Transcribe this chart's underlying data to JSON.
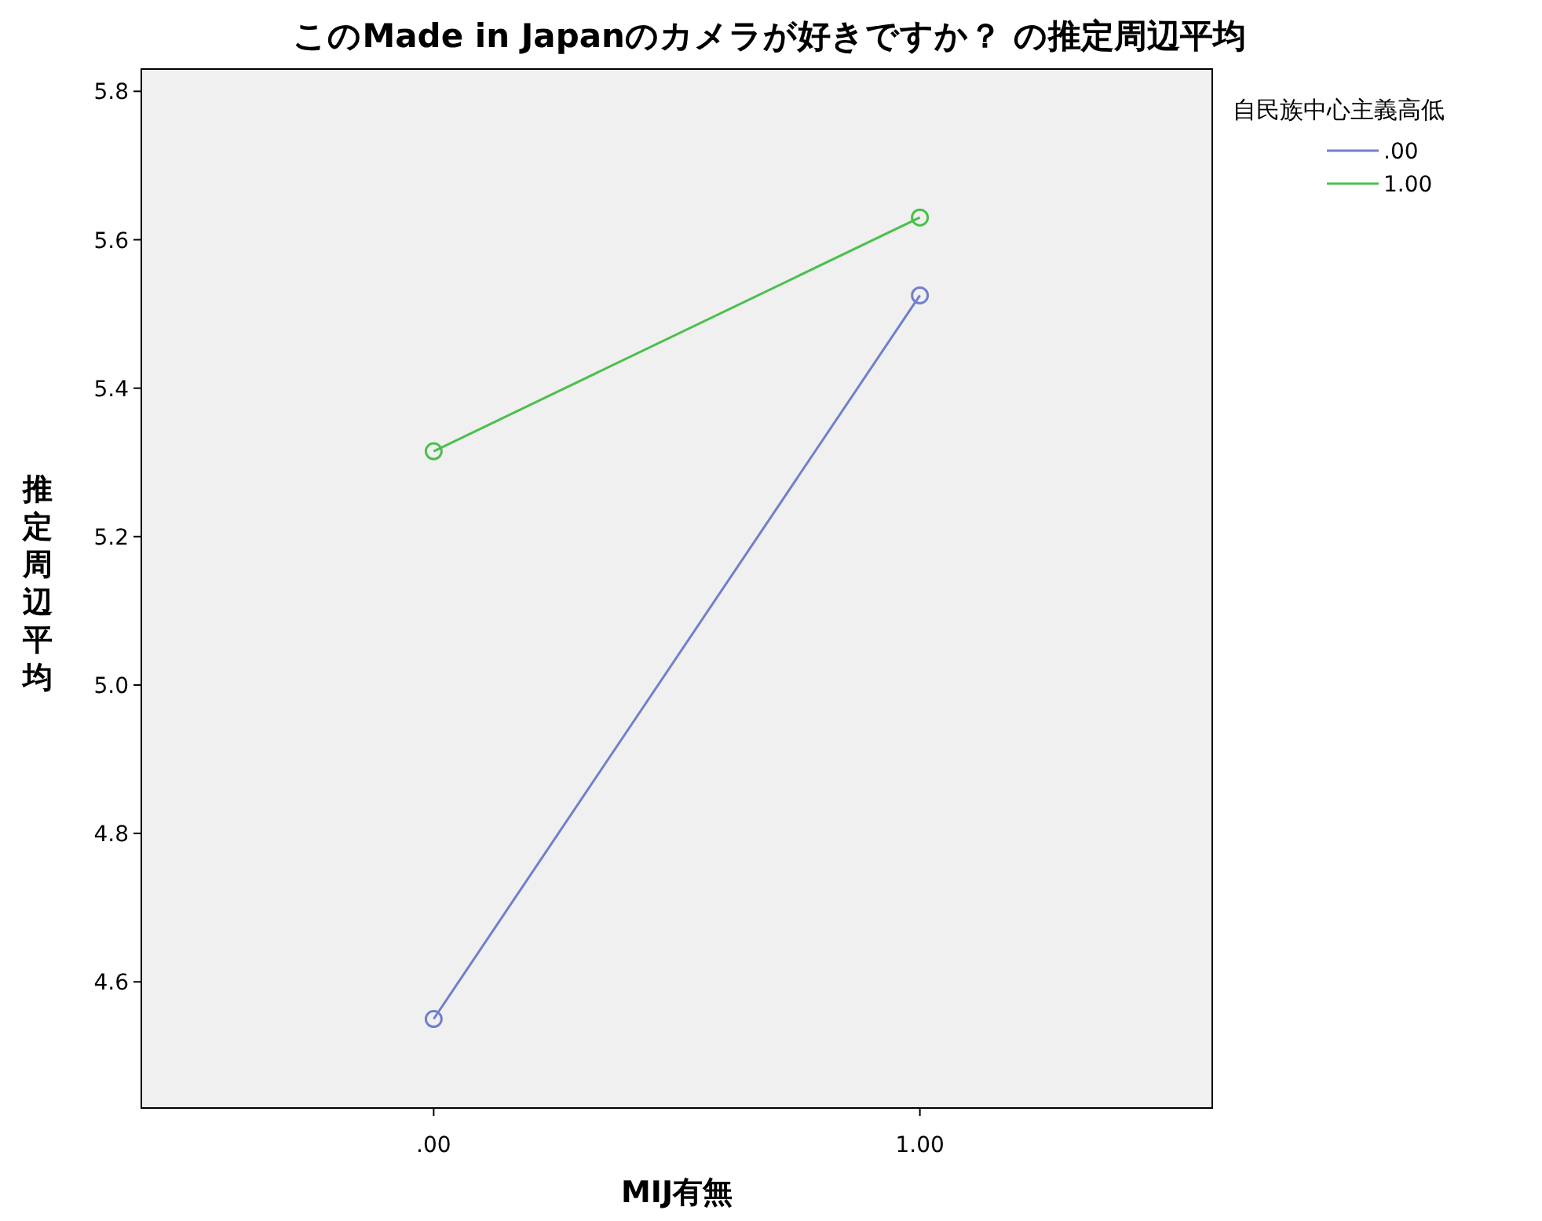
{
  "chart_data": {
    "type": "line",
    "title": "このMade in Japanのカメラが好きですか？ の推定周辺平均",
    "xlabel": "MIJ有無",
    "ylabel": "推定周辺平均",
    "legend_title": "自民族中心主義高低",
    "categories": [
      ".00",
      "1.00"
    ],
    "series": [
      {
        "name": ".00",
        "color": "#7080cc",
        "values": [
          4.55,
          5.525
        ]
      },
      {
        "name": "1.00",
        "color": "#4cbf4c",
        "values": [
          5.315,
          5.63
        ]
      }
    ],
    "ylim": [
      4.43,
      5.83
    ],
    "yticks": [
      4.6,
      4.8,
      {
        "value": 5,
        "label": "5.0"
      },
      5.2,
      5.4,
      5.6,
      5.8
    ],
    "legend": "right",
    "marker": "circle"
  }
}
